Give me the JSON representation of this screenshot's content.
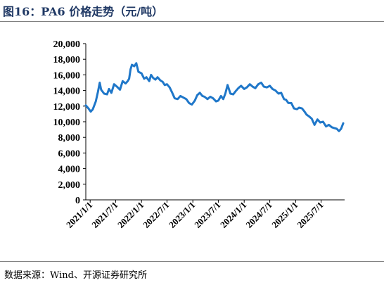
{
  "title": "图16：PA6 价格走势（元/吨）",
  "source": "数据来源：Wind、开源证券研究所",
  "chart_data": {
    "type": "line",
    "title": "图16：PA6 价格走势（元/吨）",
    "xlabel": "",
    "ylabel": "",
    "ylim": [
      0,
      20000
    ],
    "yticks": [
      0,
      2000,
      4000,
      6000,
      8000,
      10000,
      12000,
      14000,
      16000,
      18000,
      20000
    ],
    "ytick_labels": [
      "0",
      "2,000",
      "4,000",
      "6,000",
      "8,000",
      "10,000",
      "12,000",
      "14,000",
      "16,000",
      "18,000",
      "20,000"
    ],
    "xlim": [
      "2020-12-01",
      "2025-12-15"
    ],
    "xticks": [
      "2021-01-01",
      "2021-07-01",
      "2022-01-01",
      "2022-07-01",
      "2023-01-01",
      "2023-07-01",
      "2024-01-01",
      "2024-07-01",
      "2025-01-01",
      "2025-07-01"
    ],
    "xtick_labels": [
      "2021/1/1",
      "2021/7/1",
      "2022/1/1",
      "2022/7/1",
      "2023/1/1",
      "2023/7/1",
      "2024/1/1",
      "2024/7/1",
      "2025/1/1",
      "2025/7/1"
    ],
    "grid": false,
    "line_color": "#1f77c9",
    "series": [
      {
        "name": "",
        "x": [
          "2020-12-01",
          "2020-12-20",
          "2021-01-05",
          "2021-01-20",
          "2021-02-10",
          "2021-02-25",
          "2021-03-10",
          "2021-03-20",
          "2021-04-10",
          "2021-05-01",
          "2021-05-15",
          "2021-06-01",
          "2021-06-20",
          "2021-07-10",
          "2021-08-01",
          "2021-08-20",
          "2021-09-10",
          "2021-09-25",
          "2021-10-05",
          "2021-10-15",
          "2021-10-25",
          "2021-11-10",
          "2021-11-25",
          "2021-12-10",
          "2022-01-01",
          "2022-01-20",
          "2022-02-05",
          "2022-02-25",
          "2022-03-10",
          "2022-03-25",
          "2022-04-10",
          "2022-04-25",
          "2022-05-15",
          "2022-06-01",
          "2022-06-15",
          "2022-07-01",
          "2022-07-20",
          "2022-08-05",
          "2022-08-25",
          "2022-09-15",
          "2022-10-05",
          "2022-10-25",
          "2022-11-15",
          "2022-12-05",
          "2022-12-25",
          "2023-01-15",
          "2023-02-01",
          "2023-02-20",
          "2023-03-10",
          "2023-03-25",
          "2023-04-15",
          "2023-05-05",
          "2023-05-25",
          "2023-06-15",
          "2023-07-01",
          "2023-07-20",
          "2023-08-05",
          "2023-08-20",
          "2023-09-05",
          "2023-09-25",
          "2023-10-15",
          "2023-11-01",
          "2023-11-20",
          "2023-12-10",
          "2024-01-01",
          "2024-01-20",
          "2024-02-10",
          "2024-03-01",
          "2024-03-20",
          "2024-04-10",
          "2024-05-01",
          "2024-05-20",
          "2024-06-10",
          "2024-07-01",
          "2024-07-20",
          "2024-08-10",
          "2024-09-01",
          "2024-09-20",
          "2024-10-10",
          "2024-10-25",
          "2024-11-10",
          "2024-12-01",
          "2024-12-20",
          "2025-01-10",
          "2025-01-25",
          "2025-02-15",
          "2025-03-05",
          "2025-03-20",
          "2025-04-05",
          "2025-04-25",
          "2025-05-15",
          "2025-06-05",
          "2025-06-25",
          "2025-07-15",
          "2025-08-05",
          "2025-08-25",
          "2025-09-15",
          "2025-10-01",
          "2025-10-20",
          "2025-11-05",
          "2025-11-20",
          "2025-12-05"
        ],
        "values": [
          12100,
          11700,
          11300,
          11600,
          12600,
          13800,
          15000,
          14100,
          13600,
          13500,
          14200,
          13700,
          14800,
          14500,
          14100,
          15200,
          14900,
          15200,
          15500,
          16700,
          17300,
          17100,
          17500,
          16400,
          16200,
          15500,
          15700,
          15200,
          16000,
          15600,
          15400,
          15700,
          15300,
          15100,
          14700,
          14800,
          14400,
          13800,
          13000,
          12900,
          13300,
          13100,
          12900,
          12400,
          12200,
          12700,
          13400,
          13700,
          13300,
          13200,
          12900,
          13200,
          13000,
          12600,
          12700,
          13300,
          12900,
          13600,
          14700,
          13600,
          13500,
          13900,
          14300,
          14600,
          14200,
          14400,
          14800,
          14500,
          14300,
          14800,
          15000,
          14500,
          14400,
          14600,
          14200,
          14000,
          13600,
          13700,
          12900,
          12800,
          12400,
          12400,
          11700,
          11600,
          11800,
          11700,
          11300,
          10900,
          10700,
          10400,
          9600,
          10300,
          9900,
          10000,
          9400,
          9600,
          9300,
          9200,
          9100,
          8800,
          9100,
          9800
        ]
      }
    ]
  }
}
